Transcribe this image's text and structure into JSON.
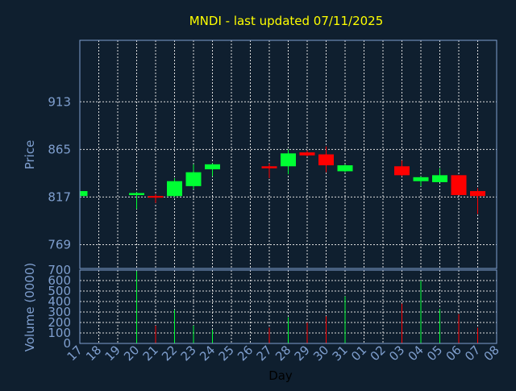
{
  "chart_data": {
    "type": "candlestick",
    "title": "MNDI - last updated 07/11/2025",
    "xlabel": "Day",
    "days": [
      "17",
      "18",
      "19",
      "20",
      "21",
      "22",
      "23",
      "24",
      "25",
      "26",
      "27",
      "28",
      "29",
      "30",
      "31",
      "01",
      "02",
      "03",
      "04",
      "05",
      "06",
      "07",
      "08"
    ],
    "price_panel": {
      "ylabel": "Price",
      "ylim": [
        745,
        975
      ],
      "yticks": [
        769,
        817,
        865,
        913
      ],
      "grid": true,
      "candles": [
        {
          "day": "17",
          "open": 818,
          "high": 823,
          "low": 816,
          "close": 823
        },
        {
          "day": "20",
          "open": 819,
          "high": 822,
          "low": 805,
          "close": 821
        },
        {
          "day": "21",
          "open": 818,
          "high": 820,
          "low": 811,
          "close": 817
        },
        {
          "day": "22",
          "open": 818,
          "high": 836,
          "low": 817,
          "close": 833
        },
        {
          "day": "23",
          "open": 828,
          "high": 850,
          "low": 825,
          "close": 842
        },
        {
          "day": "24",
          "open": 845,
          "high": 851,
          "low": 838,
          "close": 850
        },
        {
          "day": "27",
          "open": 848,
          "high": 851,
          "low": 836,
          "close": 846
        },
        {
          "day": "28",
          "open": 848,
          "high": 865,
          "low": 840,
          "close": 861
        },
        {
          "day": "29",
          "open": 862,
          "high": 864,
          "low": 858,
          "close": 859
        },
        {
          "day": "30",
          "open": 860,
          "high": 868,
          "low": 842,
          "close": 849
        },
        {
          "day": "31",
          "open": 843,
          "high": 850,
          "low": 842,
          "close": 849
        },
        {
          "day": "03",
          "open": 848,
          "high": 854,
          "low": 838,
          "close": 839
        },
        {
          "day": "04",
          "open": 833,
          "high": 838,
          "low": 828,
          "close": 837
        },
        {
          "day": "05",
          "open": 832,
          "high": 846,
          "low": 832,
          "close": 839
        },
        {
          "day": "06",
          "open": 839,
          "high": 839,
          "low": 820,
          "close": 819
        },
        {
          "day": "07",
          "open": 823,
          "high": 826,
          "low": 800,
          "close": 818
        }
      ]
    },
    "volume_panel": {
      "ylabel": "Volume (0000)",
      "ylim": [
        0,
        700
      ],
      "yticks": [
        0,
        100,
        200,
        300,
        400,
        500,
        600,
        700
      ],
      "grid": true,
      "bars": [
        {
          "day": "17",
          "value": 0,
          "direction": "up"
        },
        {
          "day": "20",
          "value": 690,
          "direction": "up"
        },
        {
          "day": "21",
          "value": 170,
          "direction": "down"
        },
        {
          "day": "22",
          "value": 320,
          "direction": "up"
        },
        {
          "day": "23",
          "value": 170,
          "direction": "up"
        },
        {
          "day": "24",
          "value": 130,
          "direction": "up"
        },
        {
          "day": "27",
          "value": 150,
          "direction": "down"
        },
        {
          "day": "28",
          "value": 250,
          "direction": "up"
        },
        {
          "day": "29",
          "value": 200,
          "direction": "down"
        },
        {
          "day": "30",
          "value": 260,
          "direction": "down"
        },
        {
          "day": "31",
          "value": 450,
          "direction": "up"
        },
        {
          "day": "03",
          "value": 380,
          "direction": "down"
        },
        {
          "day": "04",
          "value": 600,
          "direction": "up"
        },
        {
          "day": "05",
          "value": 330,
          "direction": "up"
        },
        {
          "day": "06",
          "value": 280,
          "direction": "down"
        },
        {
          "day": "07",
          "value": 150,
          "direction": "down"
        }
      ]
    },
    "colors": {
      "background": "#0f1f2f",
      "title": "#ffff00",
      "axis_text": "#7f9fcf",
      "frame": "#7f9fcf",
      "grid": "#dddddd",
      "up": "#00ff33",
      "down": "#ff0000"
    }
  }
}
